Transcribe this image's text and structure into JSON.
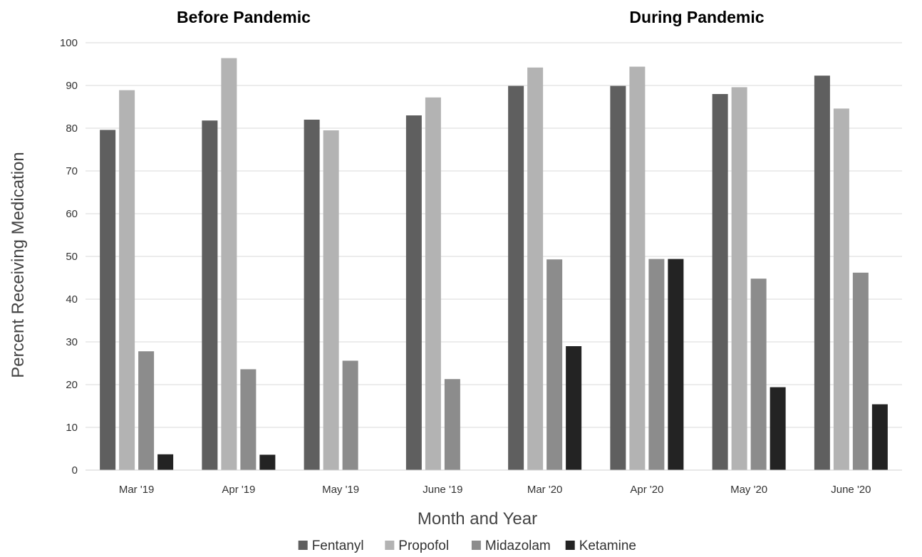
{
  "chart_data": {
    "type": "bar",
    "title": "",
    "xlabel": "Month and Year",
    "ylabel": "Percent Receiving Medication",
    "ylim": [
      0,
      100
    ],
    "yticks": [
      0,
      10,
      20,
      30,
      40,
      50,
      60,
      70,
      80,
      90,
      100
    ],
    "grid": true,
    "legend_position": "bottom",
    "categories": [
      "Mar '19",
      "Apr '19",
      "May '19",
      "June '19",
      "Mar '20",
      "Apr '20",
      "May '20",
      "June '20"
    ],
    "annotations": [
      "Before Pandemic",
      "During Pandemic"
    ],
    "series": [
      {
        "name": "Fentanyl",
        "color": "#5f5f5f",
        "values": [
          79.6,
          81.8,
          82.0,
          83.0,
          89.9,
          89.9,
          88.0,
          92.3
        ]
      },
      {
        "name": "Propofol",
        "color": "#b3b3b3",
        "values": [
          88.9,
          96.4,
          79.5,
          87.2,
          94.2,
          94.4,
          89.6,
          84.6
        ]
      },
      {
        "name": "Midazolam",
        "color": "#8c8c8c",
        "values": [
          27.8,
          23.6,
          25.6,
          21.3,
          49.3,
          49.4,
          44.8,
          46.2
        ]
      },
      {
        "name": "Ketamine",
        "color": "#232323",
        "values": [
          3.7,
          3.6,
          0,
          0,
          29.0,
          49.4,
          19.4,
          15.4
        ]
      }
    ]
  }
}
